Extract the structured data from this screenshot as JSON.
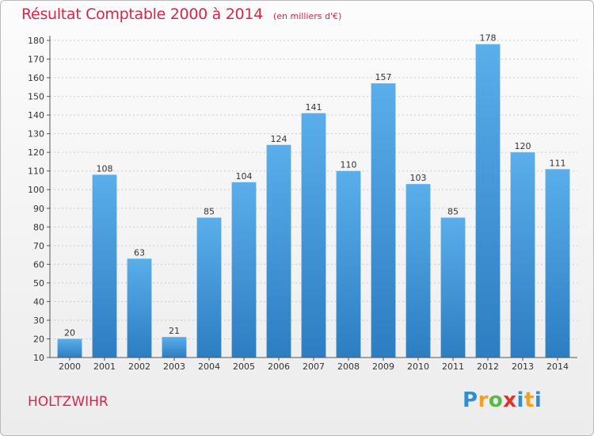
{
  "title": "Résultat Comptable 2000 à 2014",
  "subtitle": "(en milliers d'€)",
  "commune": "HOLTZWIHR",
  "logo": {
    "p": "P",
    "r": "r",
    "o": "o",
    "x": "x",
    "i": "i",
    "t": "t",
    "i2": "i"
  },
  "colors": {
    "bar_top": "#5aaeea",
    "bar_bottom": "#2d7dc2",
    "title": "#d2294b",
    "grid": "#cccccc"
  },
  "chart_data": {
    "type": "bar",
    "categories": [
      "2000",
      "2001",
      "2002",
      "2003",
      "2004",
      "2005",
      "2006",
      "2007",
      "2008",
      "2009",
      "2010",
      "2011",
      "2012",
      "2013",
      "2014"
    ],
    "values": [
      20,
      108,
      63,
      21,
      85,
      104,
      124,
      141,
      110,
      157,
      103,
      85,
      178,
      120,
      111
    ],
    "ylim": [
      10,
      180
    ],
    "yticks": [
      10,
      20,
      30,
      40,
      50,
      60,
      70,
      80,
      90,
      100,
      110,
      120,
      130,
      140,
      150,
      160,
      170,
      180
    ],
    "grid": true,
    "xlabel": "",
    "ylabel": ""
  }
}
